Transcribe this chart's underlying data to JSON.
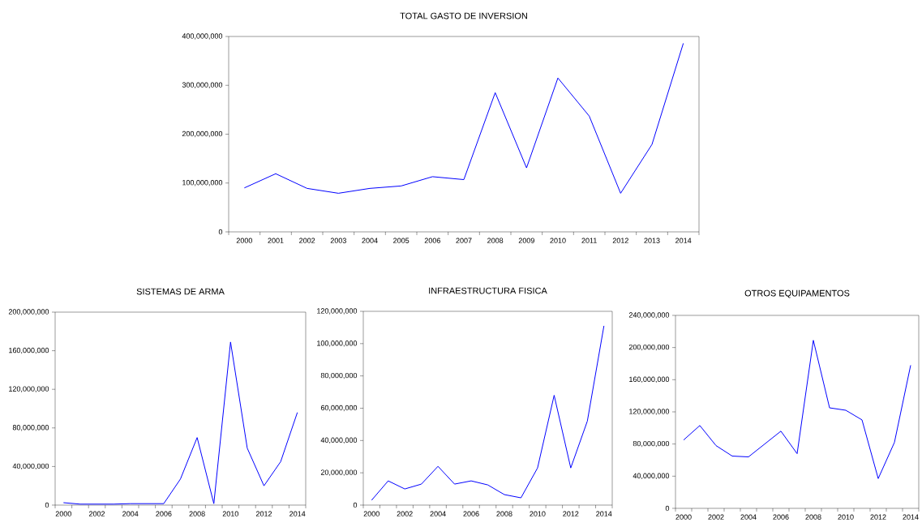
{
  "chart_data": [
    {
      "type": "line",
      "title": "TOTAL GASTO DE INVERSION",
      "categories": [
        "2000",
        "2001",
        "2002",
        "2003",
        "2004",
        "2005",
        "2006",
        "2007",
        "2008",
        "2009",
        "2010",
        "2011",
        "2012",
        "2013",
        "2014"
      ],
      "color": "#0000ff",
      "values": [
        90000000,
        119000000,
        89000000,
        79000000,
        89000000,
        94000000,
        113000000,
        107000000,
        285000000,
        131000000,
        315000000,
        237000000,
        79000000,
        179000000,
        386000000
      ],
      "ylim": [
        0,
        400000000
      ],
      "yticks": [
        0,
        {
          "value": 100000000,
          "label": "100,000,000"
        },
        {
          "value": 200000000,
          "label": "200,000,000"
        },
        {
          "value": 300000000,
          "label": "300,000,000"
        },
        {
          "value": 400000000,
          "label": "400,000,000"
        }
      ]
    },
    {
      "type": "line",
      "title": "SISTEMAS DE ARMA",
      "categories": [
        "2000",
        null,
        "2002",
        null,
        "2004",
        null,
        "2006",
        null,
        "2008",
        null,
        "2010",
        null,
        "2012",
        null,
        "2014"
      ],
      "color": "#0000ff",
      "values": [
        2500000,
        1000000,
        1000000,
        1000000,
        1500000,
        1500000,
        1500000,
        27000000,
        70000000,
        1500000,
        169000000,
        59000000,
        20000000,
        45000000,
        96000000
      ],
      "ylim": [
        0,
        200000000
      ],
      "yticks": [
        0,
        {
          "value": 40000000,
          "label": "40,000,000"
        },
        {
          "value": 80000000,
          "label": "80,000,000"
        },
        {
          "value": 120000000,
          "label": "120,000,000"
        },
        {
          "value": 160000000,
          "label": "160,000,000"
        },
        {
          "value": 200000000,
          "label": "200,000,000"
        }
      ]
    },
    {
      "type": "line",
      "title": "INFRAESTRUCTURA FISICA",
      "categories": [
        "2000",
        null,
        "2002",
        null,
        "2004",
        null,
        "2006",
        null,
        "2008",
        null,
        "2010",
        null,
        "2012",
        null,
        "2014"
      ],
      "color": "#0000ff",
      "values": [
        3000000,
        15000000,
        10000000,
        13000000,
        24000000,
        13000000,
        15000000,
        12500000,
        6500000,
        4500000,
        23000000,
        68000000,
        23000000,
        52000000,
        111000000
      ],
      "ylim": [
        0,
        120000000
      ],
      "yticks": [
        0,
        {
          "value": 20000000,
          "label": "20,000,000"
        },
        {
          "value": 40000000,
          "label": "40,000,000"
        },
        {
          "value": 60000000,
          "label": "60,000,000"
        },
        {
          "value": 80000000,
          "label": "80,000,000"
        },
        {
          "value": 100000000,
          "label": "100,000,000"
        },
        {
          "value": 120000000,
          "label": "120,000,000"
        }
      ]
    },
    {
      "type": "line",
      "title": "OTROS EQUIPAMENTOS",
      "categories": [
        "2000",
        null,
        "2002",
        null,
        "2004",
        null,
        "2006",
        null,
        "2008",
        null,
        "2010",
        null,
        "2012",
        null,
        "2014"
      ],
      "color": "#0000ff",
      "values": [
        85000000,
        103000000,
        78000000,
        65000000,
        64000000,
        80000000,
        96000000,
        68000000,
        209000000,
        125000000,
        122000000,
        110000000,
        37000000,
        82000000,
        178000000
      ],
      "ylim": [
        0,
        240000000
      ],
      "yticks": [
        0,
        {
          "value": 40000000,
          "label": "40,000,000"
        },
        {
          "value": 80000000,
          "label": "80,000,000"
        },
        {
          "value": 120000000,
          "label": "120,000,000"
        },
        {
          "value": 160000000,
          "label": "160,000,000"
        },
        {
          "value": 200000000,
          "label": "200,000,000"
        },
        {
          "value": 240000000,
          "label": "240,000,000"
        }
      ]
    }
  ]
}
